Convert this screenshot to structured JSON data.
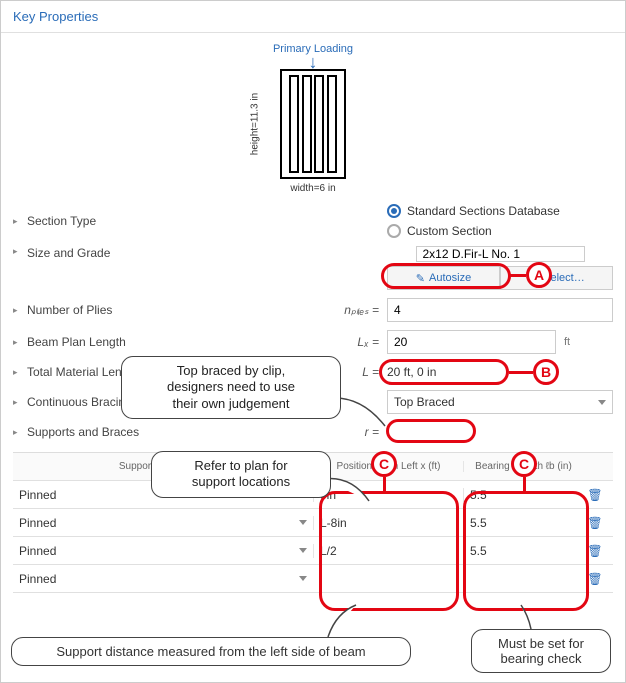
{
  "panel_title": "Key Properties",
  "diagram": {
    "primary_loading": "Primary Loading",
    "height_label": "height=11.3 in",
    "width_label": "width=6 in",
    "ply_count": 4
  },
  "section_type": {
    "label": "Section Type",
    "options": {
      "std": "Standard Sections Database",
      "custom": "Custom Section"
    },
    "selected": "std"
  },
  "size_grade": {
    "label": "Size and Grade",
    "value": "2x12 D.Fir-L No. 1",
    "autosize_label": "Autosize",
    "select_label": "Select…",
    "autosize_glyph": "✎",
    "select_glyph": "▼"
  },
  "plies": {
    "label": "Number of Plies",
    "symbol": "nₚₗᵢₑₛ =",
    "value": "4"
  },
  "plan_length": {
    "label": "Beam Plan Length",
    "symbol": "Lₓ =",
    "value": "20",
    "unit": "ft"
  },
  "material_length": {
    "label": "Total Material Length",
    "symbol": "L =",
    "value": "20 ft, 0 in"
  },
  "bracing": {
    "label": "Continuous Bracing for Lateral Torsional Buckling",
    "value": "Top Braced"
  },
  "supports": {
    "label": "Supports and Braces",
    "symbol": "r =",
    "columns": {
      "type": "Support/Brace Type",
      "pos": "Position From Left x (ft)",
      "brg": "Bearing Length ℓb (in)"
    },
    "rows": [
      {
        "type": "Pinned",
        "pos": "8in",
        "brg": "5.5"
      },
      {
        "type": "Pinned",
        "pos": "L-8in",
        "brg": "5.5"
      },
      {
        "type": "Pinned",
        "pos": "L/2",
        "brg": "5.5"
      },
      {
        "type": "Pinned",
        "pos": "",
        "brg": ""
      }
    ],
    "trash_glyph": "🗑"
  },
  "annotations": {
    "badges": {
      "A": "A",
      "B": "B",
      "C": "C"
    },
    "callout_bracing": "Top braced by clip,\ndesigners need to use\ntheir own judgement",
    "callout_supports": "Refer to plan for\nsupport locations",
    "footnote_left": "Support distance measured from the left side of beam",
    "footnote_right": "Must be set for\nbearing check"
  },
  "colors": {
    "accent": "#2a6cb8",
    "annot": "#e30613"
  }
}
